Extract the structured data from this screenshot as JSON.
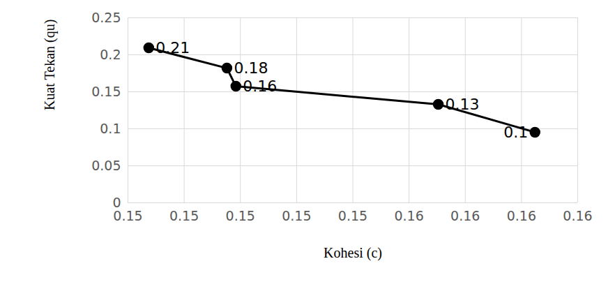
{
  "chart_data": {
    "type": "line",
    "x_label": "Kohesi (c)",
    "y_label": "Kuat Tekan (qu)",
    "x": [
      0.15037,
      0.15176,
      0.15192,
      0.15552,
      0.15724
    ],
    "values": [
      0.2094,
      0.182,
      0.1575,
      0.133,
      0.0953
    ],
    "value_labels": [
      "0.21",
      "0.18",
      "0.16",
      "0.13",
      "0.1"
    ],
    "data_labels": true,
    "color": "#000000",
    "marker": "circle",
    "xlim": [
      0.15,
      0.158
    ],
    "xticks": [
      {
        "value": 0.15,
        "label": "0.15"
      },
      {
        "value": 0.151,
        "label": "0.15"
      },
      {
        "value": 0.152,
        "label": "0.15"
      },
      {
        "value": 0.153,
        "label": "0.15"
      },
      {
        "value": 0.154,
        "label": "0.15"
      },
      {
        "value": 0.155,
        "label": "0.16"
      },
      {
        "value": 0.156,
        "label": "0.16"
      },
      {
        "value": 0.157,
        "label": "0.16"
      },
      {
        "value": 0.158,
        "label": "0.16"
      }
    ],
    "ylim": [
      0,
      0.25
    ],
    "yticks": [
      0,
      0.05,
      0.1,
      0.15,
      0.2,
      0.25
    ],
    "grid": true
  }
}
